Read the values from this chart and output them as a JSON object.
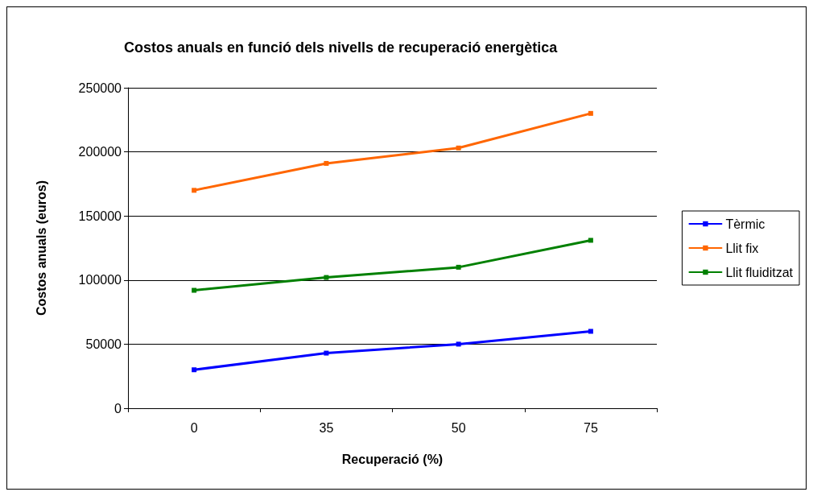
{
  "chart_data": {
    "type": "line",
    "title": "Costos anuals en funció dels nivells de recuperació energètica",
    "xlabel": "Recuperació (%)",
    "ylabel": "Costos anuals (euros)",
    "categories": [
      "0",
      "35",
      "50",
      "75"
    ],
    "series": [
      {
        "name": "Tèrmic",
        "color": "#0000ff",
        "values": [
          30000,
          43000,
          50000,
          60000
        ]
      },
      {
        "name": "Llit fix",
        "color": "#ff6600",
        "values": [
          170000,
          191000,
          203000,
          230000
        ]
      },
      {
        "name": "Llit fluiditzat",
        "color": "#008000",
        "values": [
          92000,
          102000,
          110000,
          131000
        ]
      }
    ],
    "ylim": [
      0,
      250000
    ],
    "yticks": [
      0,
      50000,
      100000,
      150000,
      200000,
      250000
    ],
    "grid": "y",
    "legend": "right",
    "marker": "square",
    "line_style": "solid"
  }
}
